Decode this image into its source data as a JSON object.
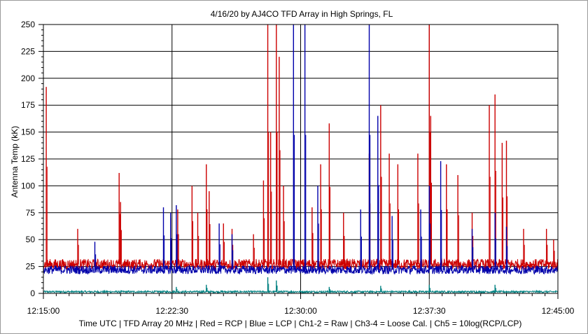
{
  "chart_data": {
    "type": "line",
    "title": "4/16/20  by  AJ4CO TFD Array  in  High Springs, FL",
    "ylabel": "Antenna Temp (kK)",
    "xlabel": "Time UTC | TFD Array 20 MHz | Red = RCP | Blue = LCP | Ch1-2 = Raw | Ch3-4 = Loose Cal. | Ch5 = 10log(RCP/LCP)",
    "xlim": [
      "12:15:00",
      "12:45:00"
    ],
    "ylim": [
      0,
      250
    ],
    "x_ticks": [
      "12:15:00",
      "12:22:30",
      "12:30:00",
      "12:37:30",
      "12:45:00"
    ],
    "y_ticks": [
      0,
      25,
      50,
      75,
      100,
      125,
      150,
      175,
      200,
      225,
      250
    ],
    "grid": true,
    "colors": {
      "rcp": "#cc0000",
      "lcp": "#0000aa",
      "ratio": "#008080",
      "grid": "#000000"
    },
    "series": [
      {
        "name": "RCP",
        "baseline": 27,
        "spikes": [
          [
            "12:15:10",
            192
          ],
          [
            "12:17:00",
            60
          ],
          [
            "12:19:25",
            112
          ],
          [
            "12:19:30",
            85
          ],
          [
            "12:22:25",
            70
          ],
          [
            "12:22:50",
            78
          ],
          [
            "12:23:40",
            100
          ],
          [
            "12:24:00",
            75
          ],
          [
            "12:24:30",
            120
          ],
          [
            "12:24:40",
            95
          ],
          [
            "12:25:30",
            65
          ],
          [
            "12:26:00",
            60
          ],
          [
            "12:27:15",
            55
          ],
          [
            "12:27:50",
            105
          ],
          [
            "12:28:05",
            250
          ],
          [
            "12:28:15",
            150
          ],
          [
            "12:28:35",
            250
          ],
          [
            "12:28:45",
            220
          ],
          [
            "12:29:00",
            100
          ],
          [
            "12:30:40",
            80
          ],
          [
            "12:31:10",
            120
          ],
          [
            "12:31:40",
            158
          ],
          [
            "12:32:30",
            75
          ],
          [
            "12:34:00",
            130
          ],
          [
            "12:34:40",
            175
          ],
          [
            "12:35:10",
            130
          ],
          [
            "12:35:40",
            120
          ],
          [
            "12:36:50",
            130
          ],
          [
            "12:37:30",
            250
          ],
          [
            "12:37:35",
            165
          ],
          [
            "12:38:30",
            120
          ],
          [
            "12:39:10",
            110
          ],
          [
            "12:40:00",
            75
          ],
          [
            "12:41:00",
            175
          ],
          [
            "12:41:20",
            185
          ],
          [
            "12:41:45",
            140
          ],
          [
            "12:42:00",
            142
          ],
          [
            "12:43:00",
            60
          ],
          [
            "12:44:20",
            60
          ],
          [
            "12:44:45",
            50
          ]
        ]
      },
      {
        "name": "LCP",
        "baseline": 22,
        "spikes": [
          [
            "12:18:00",
            48
          ],
          [
            "12:22:00",
            80
          ],
          [
            "12:22:25",
            75
          ],
          [
            "12:22:45",
            82
          ],
          [
            "12:25:15",
            65
          ],
          [
            "12:26:00",
            55
          ],
          [
            "12:29:35",
            250
          ],
          [
            "12:30:15",
            250
          ],
          [
            "12:31:00",
            100
          ],
          [
            "12:33:30",
            78
          ],
          [
            "12:34:00",
            250
          ],
          [
            "12:34:30",
            165
          ],
          [
            "12:35:20",
            72
          ],
          [
            "12:37:00",
            78
          ],
          [
            "12:37:30",
            100
          ],
          [
            "12:38:10",
            123
          ],
          [
            "12:40:00",
            60
          ],
          [
            "12:41:20",
            75
          ],
          [
            "12:42:00",
            62
          ]
        ]
      },
      {
        "name": "10log(RCP/LCP)",
        "baseline": 1.5,
        "spikes": [
          [
            "12:22:45",
            6
          ],
          [
            "12:24:30",
            8
          ],
          [
            "12:28:05",
            15
          ],
          [
            "12:28:35",
            12
          ],
          [
            "12:31:40",
            6
          ],
          [
            "12:34:40",
            7
          ],
          [
            "12:37:30",
            8
          ],
          [
            "12:41:20",
            8
          ]
        ]
      }
    ]
  }
}
